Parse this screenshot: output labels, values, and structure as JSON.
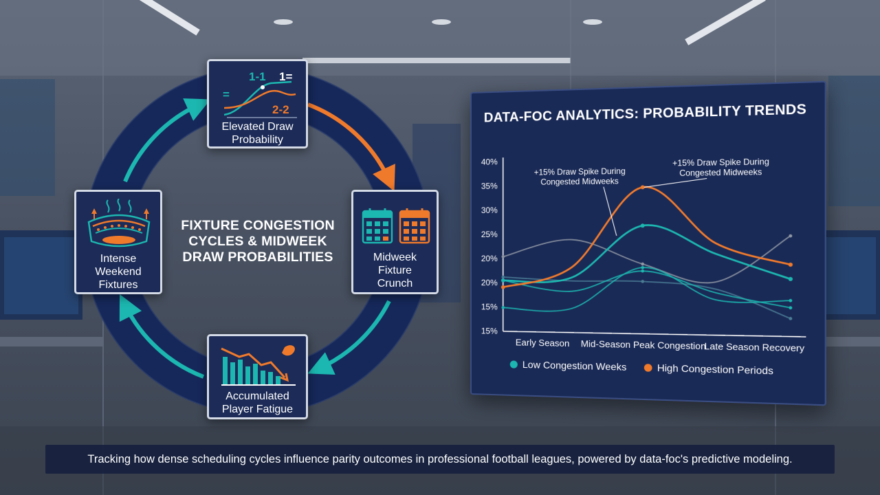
{
  "cycle": {
    "title": "FIXTURE CONGESTION\nCYCLES & MIDWEEK\nDRAW PROBABILITIES",
    "nodes": {
      "draw": {
        "label": "Elevated Draw\nProbability",
        "icon_texts": [
          "1-1",
          "1=",
          "=",
          "2-2"
        ]
      },
      "midweek": {
        "label": "Midweek\nFixture\nCrunch"
      },
      "fatigue": {
        "label": "Accumulated\nPlayer Fatigue"
      },
      "weekend": {
        "label": "Intense\nWeekend\nFixtures"
      }
    },
    "colors": {
      "ring": "#16285a",
      "teal": "#1cb7b0",
      "orange": "#f07a2c"
    }
  },
  "panel": {
    "title": "DATA-FOC ANALYTICS: PROBABILITY TRENDS",
    "legend": [
      {
        "label": "Low Congestion Weeks",
        "color": "#1cb7b0"
      },
      {
        "label": "High Congestion Periods",
        "color": "#f07a2c"
      }
    ]
  },
  "chart_data": {
    "type": "line",
    "title": "DATA-FOC ANALYTICS: PROBABILITY TRENDS",
    "xlabel": "",
    "ylabel": "",
    "y_tick_labels": [
      "40%",
      "35%",
      "30%",
      "25%",
      "20%",
      "20%",
      "15%",
      "15%"
    ],
    "x_tick_labels": [
      "Early Season",
      "Mid-Season Peak Congestion",
      "Late Season Recovery"
    ],
    "x": [
      0,
      0.5,
      1,
      1.5,
      2
    ],
    "series": [
      {
        "name": "High Congestion Periods",
        "color": "#f07a2c",
        "values": [
          21.5,
          24.5,
          36,
          28,
          25
        ]
      },
      {
        "name": "Low Congestion Weeks",
        "color": "#1cb7b0",
        "values": [
          22.5,
          23,
          30.5,
          26.5,
          23
        ]
      },
      {
        "color": "#1cb7b0",
        "values": [
          22.5,
          21,
          24,
          21,
          19
        ]
      },
      {
        "color": "#1cb7b0",
        "values": [
          18.5,
          18.5,
          24.5,
          20,
          20
        ]
      },
      {
        "color": "#8f96a3",
        "values": [
          26,
          28.5,
          25,
          22.5,
          29
        ]
      },
      {
        "color": "#4a7d95",
        "values": [
          23,
          22.5,
          22.5,
          21.5,
          17.5
        ]
      }
    ],
    "ylim": [
      15,
      40
    ],
    "grid": false,
    "legend_position": "bottom-left",
    "annotations": [
      {
        "text": "+15% Draw Spike During\nCongested Midweeks",
        "series": "Low Congestion Weeks",
        "x": 1
      },
      {
        "text": "+15% Draw Spike During\nCongested Midweeks",
        "series": "High Congestion Periods",
        "x": 1
      }
    ]
  },
  "caption": "Tracking how dense scheduling cycles influence parity outcomes in professional football leagues, powered by data-foc's predictive modeling."
}
